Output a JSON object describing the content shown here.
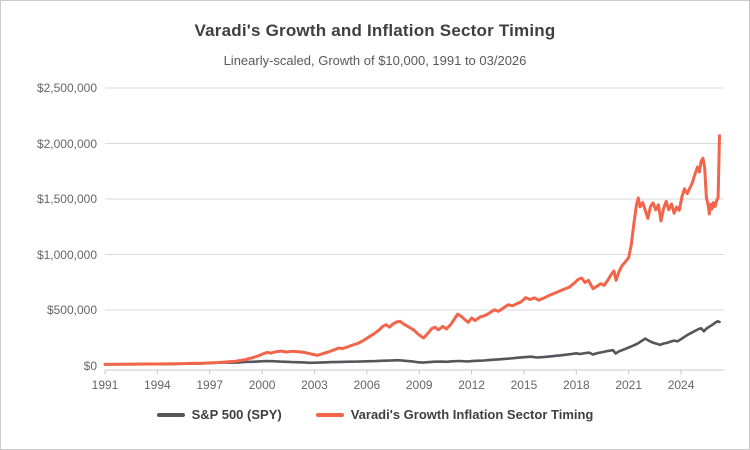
{
  "colors": {
    "spy": "#56565A",
    "varadi": "#F2654B",
    "grid": "#D9D9D9",
    "axis_line": "#C8C8C8",
    "axis_text": "#666666",
    "title_text": "#3F3F3F",
    "subtitle_text": "#595959",
    "card_border": "#CBCBCB",
    "background": "#FFFFFF"
  },
  "chart_data": {
    "type": "line",
    "title": "Varadi's Growth and Inflation Sector Timing",
    "subtitle": "Linearly-scaled, Growth of $10,000, 1991 to 03/2026",
    "xlabel": "",
    "ylabel": "",
    "grid": "horizontal",
    "legend_position": "bottom",
    "x_axis": {
      "ticks": [
        1991,
        1994,
        1997,
        2000,
        2003,
        2006,
        2009,
        2012,
        2015,
        2018,
        2021,
        2024
      ],
      "range": [
        1991,
        2026.46
      ]
    },
    "y_axis": {
      "ticks": [
        {
          "value": 0,
          "label": "$0"
        },
        {
          "value": 500000,
          "label": "$500,000"
        },
        {
          "value": 1000000,
          "label": "$1,000,000"
        },
        {
          "value": 1500000,
          "label": "$1,500,000"
        },
        {
          "value": 2000000,
          "label": "$2,000,000"
        },
        {
          "value": 2500000,
          "label": "$2,500,000"
        }
      ],
      "range": [
        0,
        2500000
      ]
    },
    "series": [
      {
        "name": "S&P 500 (SPY)",
        "color": "#56565A",
        "line_width": 2.6,
        "points": [
          [
            1991.0,
            10000
          ],
          [
            1991.5,
            10600
          ],
          [
            1992.0,
            11300
          ],
          [
            1992.5,
            11600
          ],
          [
            1993.0,
            12400
          ],
          [
            1993.5,
            12900
          ],
          [
            1994.0,
            12900
          ],
          [
            1994.5,
            12700
          ],
          [
            1995.0,
            14200
          ],
          [
            1995.5,
            16000
          ],
          [
            1996.0,
            17500
          ],
          [
            1996.5,
            19000
          ],
          [
            1997.0,
            21500
          ],
          [
            1997.5,
            25000
          ],
          [
            1998.0,
            27500
          ],
          [
            1998.6,
            26000
          ],
          [
            1999.0,
            31500
          ],
          [
            1999.6,
            34000
          ],
          [
            2000.2,
            40000
          ],
          [
            2000.6,
            38500
          ],
          [
            2001.0,
            35500
          ],
          [
            2001.4,
            33500
          ],
          [
            2001.7,
            30500
          ],
          [
            2002.0,
            30000
          ],
          [
            2002.4,
            27500
          ],
          [
            2002.75,
            24000
          ],
          [
            2003.0,
            25500
          ],
          [
            2003.5,
            28000
          ],
          [
            2004.0,
            31000
          ],
          [
            2004.5,
            32000
          ],
          [
            2005.0,
            34000
          ],
          [
            2005.5,
            35000
          ],
          [
            2006.0,
            37500
          ],
          [
            2006.5,
            39500
          ],
          [
            2007.0,
            43000
          ],
          [
            2007.5,
            45500
          ],
          [
            2007.8,
            48000
          ],
          [
            2008.2,
            42000
          ],
          [
            2008.6,
            37000
          ],
          [
            2008.9,
            29500
          ],
          [
            2009.2,
            26000
          ],
          [
            2009.5,
            30000
          ],
          [
            2009.9,
            34000
          ],
          [
            2010.3,
            35500
          ],
          [
            2010.55,
            33500
          ],
          [
            2010.9,
            37500
          ],
          [
            2011.3,
            40500
          ],
          [
            2011.6,
            38000
          ],
          [
            2011.8,
            36500
          ],
          [
            2012.0,
            40000
          ],
          [
            2012.4,
            43500
          ],
          [
            2012.7,
            45000
          ],
          [
            2013.0,
            48500
          ],
          [
            2013.4,
            53000
          ],
          [
            2013.8,
            57500
          ],
          [
            2014.2,
            63000
          ],
          [
            2014.6,
            69000
          ],
          [
            2015.0,
            75000
          ],
          [
            2015.4,
            79000
          ],
          [
            2015.75,
            72500
          ],
          [
            2016.1,
            75500
          ],
          [
            2016.5,
            82000
          ],
          [
            2016.9,
            88500
          ],
          [
            2017.3,
            95500
          ],
          [
            2017.7,
            102500
          ],
          [
            2018.0,
            110000
          ],
          [
            2018.2,
            104000
          ],
          [
            2018.5,
            112000
          ],
          [
            2018.75,
            115000
          ],
          [
            2018.95,
            99000
          ],
          [
            2019.2,
            112000
          ],
          [
            2019.5,
            121000
          ],
          [
            2019.8,
            131000
          ],
          [
            2020.1,
            138000
          ],
          [
            2020.25,
            108000
          ],
          [
            2020.45,
            128000
          ],
          [
            2020.65,
            140000
          ],
          [
            2020.85,
            152000
          ],
          [
            2021.0,
            162000
          ],
          [
            2021.25,
            178000
          ],
          [
            2021.5,
            196000
          ],
          [
            2021.75,
            222000
          ],
          [
            2021.95,
            242000
          ],
          [
            2022.1,
            228000
          ],
          [
            2022.3,
            212000
          ],
          [
            2022.5,
            200000
          ],
          [
            2022.7,
            192000
          ],
          [
            2022.8,
            186000
          ],
          [
            2023.0,
            198000
          ],
          [
            2023.2,
            204000
          ],
          [
            2023.4,
            215000
          ],
          [
            2023.6,
            224000
          ],
          [
            2023.8,
            218000
          ],
          [
            2024.0,
            238000
          ],
          [
            2024.2,
            258000
          ],
          [
            2024.4,
            278000
          ],
          [
            2024.6,
            295000
          ],
          [
            2024.8,
            312000
          ],
          [
            2025.0,
            328000
          ],
          [
            2025.15,
            335000
          ],
          [
            2025.3,
            308000
          ],
          [
            2025.45,
            332000
          ],
          [
            2025.6,
            348000
          ],
          [
            2025.75,
            362000
          ],
          [
            2025.9,
            378000
          ],
          [
            2026.0,
            390000
          ],
          [
            2026.1,
            398000
          ],
          [
            2026.2,
            392000
          ]
        ]
      },
      {
        "name": "Varadi's Growth Inflation Sector Timing",
        "color": "#F2654B",
        "line_width": 3,
        "points": [
          [
            1991.0,
            10000
          ],
          [
            1991.5,
            10500
          ],
          [
            1992.0,
            11200
          ],
          [
            1992.5,
            11800
          ],
          [
            1993.0,
            12600
          ],
          [
            1993.5,
            13200
          ],
          [
            1994.0,
            13500
          ],
          [
            1994.5,
            14000
          ],
          [
            1995.0,
            15500
          ],
          [
            1995.5,
            16800
          ],
          [
            1996.0,
            18500
          ],
          [
            1996.5,
            20500
          ],
          [
            1997.0,
            23500
          ],
          [
            1997.5,
            27000
          ],
          [
            1998.0,
            32000
          ],
          [
            1998.5,
            39000
          ],
          [
            1999.0,
            52000
          ],
          [
            1999.5,
            72000
          ],
          [
            1999.8,
            88000
          ],
          [
            2000.1,
            108000
          ],
          [
            2000.3,
            118000
          ],
          [
            2000.5,
            112000
          ],
          [
            2000.8,
            124000
          ],
          [
            2001.1,
            130000
          ],
          [
            2001.4,
            122000
          ],
          [
            2001.7,
            128000
          ],
          [
            2002.0,
            125000
          ],
          [
            2002.4,
            118000
          ],
          [
            2002.7,
            108000
          ],
          [
            2003.0,
            96000
          ],
          [
            2003.2,
            93000
          ],
          [
            2003.5,
            108000
          ],
          [
            2003.8,
            122000
          ],
          [
            2004.1,
            140000
          ],
          [
            2004.4,
            158000
          ],
          [
            2004.6,
            152000
          ],
          [
            2004.9,
            168000
          ],
          [
            2005.2,
            185000
          ],
          [
            2005.5,
            200000
          ],
          [
            2005.8,
            225000
          ],
          [
            2006.1,
            255000
          ],
          [
            2006.4,
            285000
          ],
          [
            2006.7,
            320000
          ],
          [
            2006.9,
            350000
          ],
          [
            2007.1,
            368000
          ],
          [
            2007.3,
            345000
          ],
          [
            2007.5,
            375000
          ],
          [
            2007.7,
            392000
          ],
          [
            2007.9,
            398000
          ],
          [
            2008.1,
            375000
          ],
          [
            2008.4,
            348000
          ],
          [
            2008.7,
            318000
          ],
          [
            2008.9,
            288000
          ],
          [
            2009.1,
            262000
          ],
          [
            2009.25,
            248000
          ],
          [
            2009.5,
            290000
          ],
          [
            2009.7,
            330000
          ],
          [
            2009.9,
            345000
          ],
          [
            2010.1,
            322000
          ],
          [
            2010.35,
            352000
          ],
          [
            2010.55,
            330000
          ],
          [
            2010.8,
            368000
          ],
          [
            2011.0,
            415000
          ],
          [
            2011.2,
            462000
          ],
          [
            2011.45,
            438000
          ],
          [
            2011.6,
            415000
          ],
          [
            2011.8,
            388000
          ],
          [
            2012.0,
            428000
          ],
          [
            2012.2,
            405000
          ],
          [
            2012.5,
            438000
          ],
          [
            2012.8,
            452000
          ],
          [
            2013.0,
            470000
          ],
          [
            2013.3,
            502000
          ],
          [
            2013.55,
            488000
          ],
          [
            2013.8,
            515000
          ],
          [
            2014.1,
            548000
          ],
          [
            2014.35,
            538000
          ],
          [
            2014.6,
            558000
          ],
          [
            2014.85,
            575000
          ],
          [
            2015.1,
            612000
          ],
          [
            2015.35,
            595000
          ],
          [
            2015.6,
            610000
          ],
          [
            2015.85,
            588000
          ],
          [
            2016.1,
            605000
          ],
          [
            2016.4,
            628000
          ],
          [
            2016.7,
            648000
          ],
          [
            2017.0,
            668000
          ],
          [
            2017.3,
            688000
          ],
          [
            2017.6,
            705000
          ],
          [
            2017.9,
            745000
          ],
          [
            2018.1,
            775000
          ],
          [
            2018.3,
            788000
          ],
          [
            2018.5,
            748000
          ],
          [
            2018.7,
            768000
          ],
          [
            2018.95,
            692000
          ],
          [
            2019.2,
            715000
          ],
          [
            2019.4,
            738000
          ],
          [
            2019.6,
            722000
          ],
          [
            2019.8,
            768000
          ],
          [
            2020.0,
            820000
          ],
          [
            2020.15,
            852000
          ],
          [
            2020.28,
            768000
          ],
          [
            2020.45,
            848000
          ],
          [
            2020.6,
            895000
          ],
          [
            2020.8,
            932000
          ],
          [
            2021.0,
            972000
          ],
          [
            2021.15,
            1090000
          ],
          [
            2021.3,
            1280000
          ],
          [
            2021.45,
            1450000
          ],
          [
            2021.55,
            1510000
          ],
          [
            2021.65,
            1430000
          ],
          [
            2021.8,
            1468000
          ],
          [
            2021.95,
            1398000
          ],
          [
            2022.1,
            1325000
          ],
          [
            2022.25,
            1432000
          ],
          [
            2022.4,
            1465000
          ],
          [
            2022.55,
            1402000
          ],
          [
            2022.7,
            1448000
          ],
          [
            2022.85,
            1302000
          ],
          [
            2023.0,
            1415000
          ],
          [
            2023.15,
            1478000
          ],
          [
            2023.3,
            1402000
          ],
          [
            2023.45,
            1455000
          ],
          [
            2023.6,
            1372000
          ],
          [
            2023.75,
            1428000
          ],
          [
            2023.9,
            1398000
          ],
          [
            2024.05,
            1520000
          ],
          [
            2024.2,
            1592000
          ],
          [
            2024.35,
            1548000
          ],
          [
            2024.5,
            1598000
          ],
          [
            2024.65,
            1648000
          ],
          [
            2024.8,
            1725000
          ],
          [
            2024.95,
            1788000
          ],
          [
            2025.05,
            1742000
          ],
          [
            2025.15,
            1838000
          ],
          [
            2025.25,
            1868000
          ],
          [
            2025.35,
            1788000
          ],
          [
            2025.45,
            1512000
          ],
          [
            2025.55,
            1448000
          ],
          [
            2025.62,
            1365000
          ],
          [
            2025.7,
            1452000
          ],
          [
            2025.78,
            1412000
          ],
          [
            2025.85,
            1468000
          ],
          [
            2025.95,
            1432000
          ],
          [
            2026.05,
            1488000
          ],
          [
            2026.12,
            1512000
          ],
          [
            2026.2,
            2070000
          ]
        ]
      }
    ]
  }
}
